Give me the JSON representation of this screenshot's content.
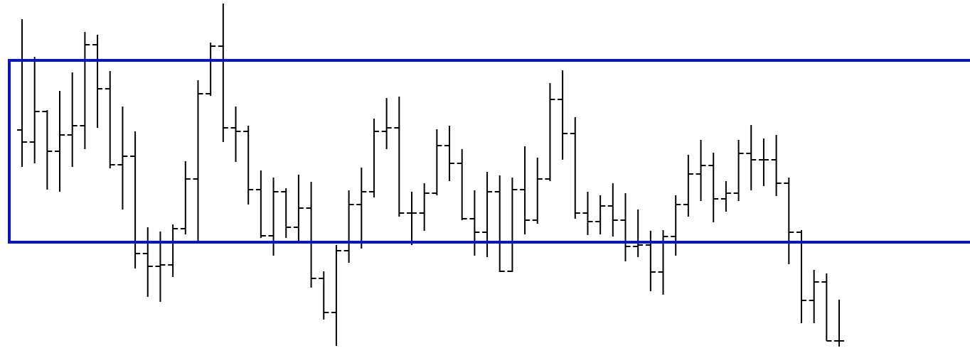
{
  "chart_data": {
    "type": "ohlc",
    "open": [
      307,
      290,
      333,
      277,
      300,
      313,
      427,
      365,
      258,
      270,
      133,
      115,
      117,
      168,
      238,
      358,
      425,
      310,
      305,
      223,
      158,
      220,
      170,
      197,
      98,
      50,
      137,
      202,
      220,
      305,
      310,
      190,
      190,
      218,
      285,
      260,
      182,
      163,
      220,
      108,
      223,
      180,
      238,
      350,
      302,
      190,
      178,
      200,
      180,
      143,
      145,
      107,
      157,
      202,
      245,
      257,
      210,
      218,
      274,
      265,
      265,
      232,
      163,
      67,
      93,
      10
    ],
    "high": [
      463,
      410,
      335,
      362,
      388,
      445,
      441,
      390,
      340,
      305,
      170,
      164,
      174,
      263,
      377,
      430,
      485,
      340,
      313,
      250,
      240,
      225,
      244,
      234,
      108,
      145,
      222,
      254,
      323,
      352,
      354,
      220,
      232,
      308,
      313,
      280,
      222,
      248,
      243,
      240,
      284,
      268,
      373,
      391,
      325,
      220,
      215,
      232,
      218,
      195,
      165,
      166,
      215,
      272,
      293,
      275,
      235,
      293,
      314,
      295,
      300,
      240,
      166,
      110,
      105,
      68
    ],
    "low": [
      255,
      260,
      223,
      220,
      255,
      280,
      310,
      253,
      195,
      112,
      72,
      65,
      100,
      160,
      149,
      355,
      290,
      262,
      202,
      155,
      130,
      155,
      150,
      85,
      40,
      3,
      120,
      140,
      212,
      280,
      185,
      145,
      165,
      215,
      235,
      180,
      130,
      128,
      107,
      107,
      160,
      175,
      235,
      265,
      182,
      159,
      160,
      157,
      122,
      128,
      80,
      75,
      130,
      185,
      207,
      177,
      192,
      207,
      222,
      228,
      214,
      118,
      35,
      35,
      10,
      2
    ],
    "close": [
      290,
      333,
      277,
      300,
      313,
      427,
      365,
      258,
      270,
      133,
      115,
      117,
      168,
      238,
      358,
      425,
      310,
      305,
      223,
      158,
      220,
      170,
      197,
      98,
      50,
      137,
      202,
      220,
      305,
      310,
      190,
      190,
      218,
      285,
      260,
      182,
      163,
      220,
      108,
      223,
      180,
      238,
      350,
      302,
      190,
      178,
      200,
      180,
      143,
      145,
      107,
      157,
      202,
      245,
      257,
      210,
      218,
      274,
      265,
      265,
      232,
      163,
      67,
      93,
      10,
      10
    ],
    "ylim": [
      0,
      490
    ],
    "hlines": [
      405,
      149
    ],
    "color": "#000000",
    "line_color": "#0a14c8"
  }
}
